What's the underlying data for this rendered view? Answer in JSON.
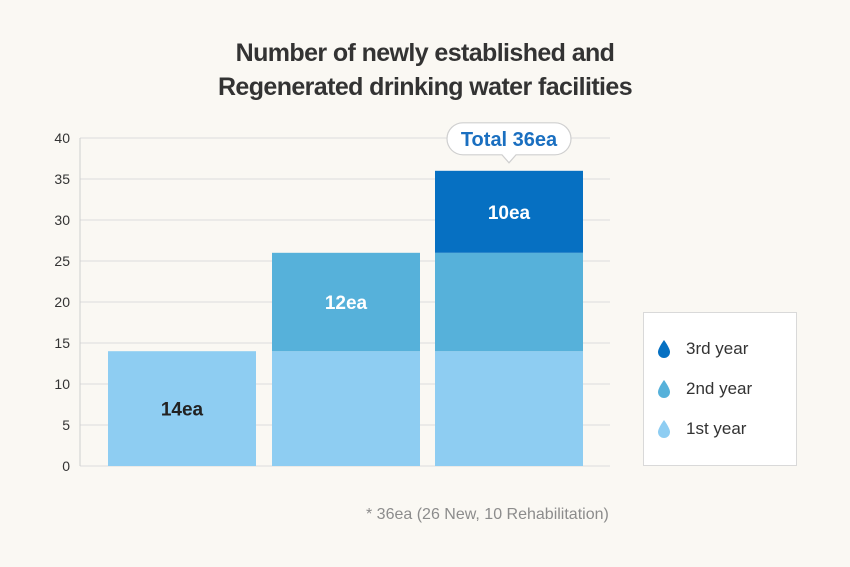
{
  "chart_data": {
    "type": "bar",
    "stacked": true,
    "title_lines": [
      "Number of newly established and",
      "Regenerated drinking water facilities"
    ],
    "categories": [
      "",
      "",
      ""
    ],
    "series": [
      {
        "name": "1st year",
        "color": "#8ecdf2",
        "values": [
          14,
          14,
          14
        ]
      },
      {
        "name": "2nd year",
        "color": "#56b1da",
        "values": [
          0,
          12,
          12
        ]
      },
      {
        "name": "3rd year",
        "color": "#0670c2",
        "values": [
          0,
          0,
          10
        ]
      }
    ],
    "segment_labels": [
      {
        "bar": 0,
        "series": 0,
        "text": "14ea"
      },
      {
        "bar": 1,
        "series": 1,
        "text": "12ea"
      },
      {
        "bar": 2,
        "series": 2,
        "text": "10ea"
      }
    ],
    "total_callout": {
      "bar": 2,
      "text": "Total 36ea",
      "color": "#1a6fc0"
    },
    "yticks": [
      0,
      5,
      10,
      15,
      20,
      25,
      30,
      35,
      40
    ],
    "ylim": [
      0,
      40
    ],
    "grid": true,
    "legend_position": "right",
    "legend_order": [
      "3rd year",
      "2nd year",
      "1st year"
    ],
    "footnote": "* 36ea (26 New, 10 Rehabilitation)"
  }
}
